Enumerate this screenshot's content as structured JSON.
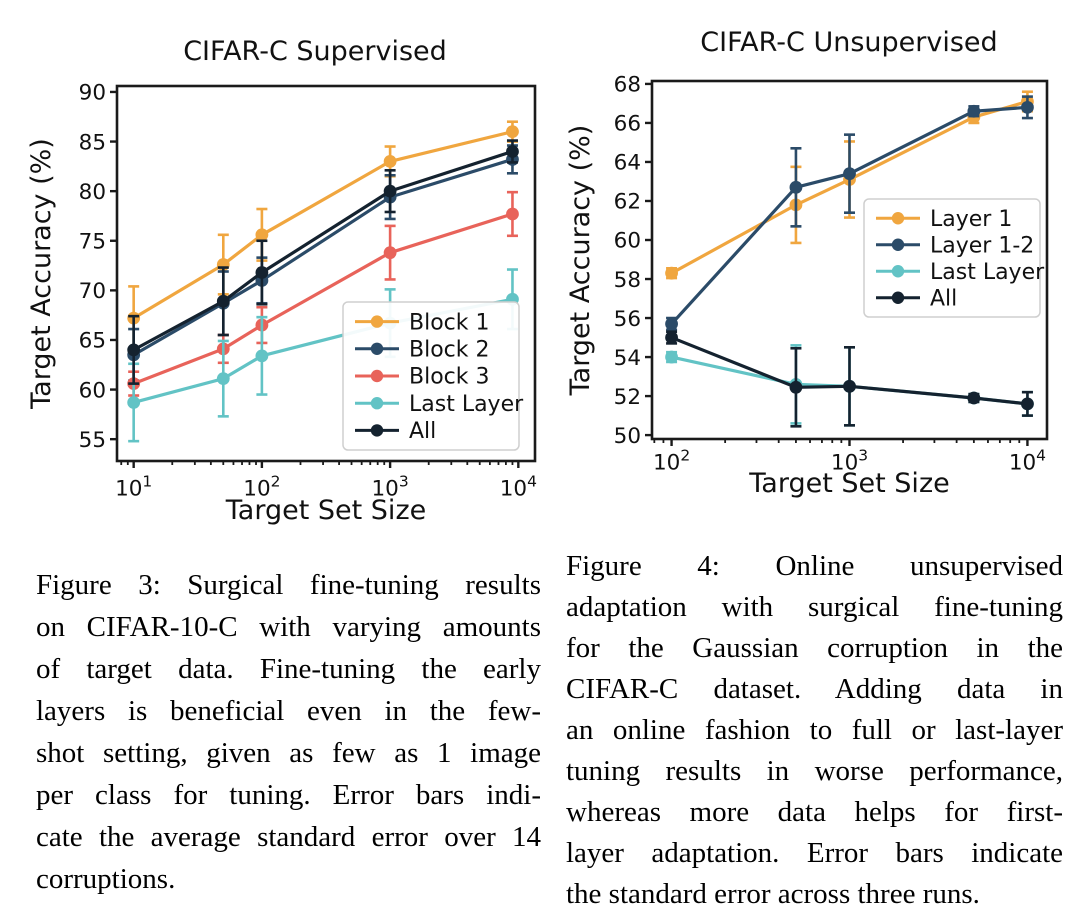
{
  "figures": {
    "figure3": {
      "caption_lines": [
        "Figure 3: Surgical fine-tuning results",
        "on CIFAR-10-C with varying amounts",
        "of target data.  Fine-tuning the early",
        "layers is beneficial even in the few-",
        "shot setting, given as few as 1 image",
        "per class for tuning.  Error bars indi-",
        "cate the average standard error over 14",
        "corruptions."
      ]
    },
    "figure4": {
      "caption_lines": [
        "Figure 4:  Online unsupervised",
        "adaptation with surgical fine-tuning",
        "for the Gaussian corruption in the",
        "CIFAR-C dataset.  Adding data in",
        "an online fashion to full or last-layer",
        "tuning results in worse performance,",
        "whereas more data helps for first-",
        "layer adaptation. Error bars indicate",
        "the standard error across three runs."
      ]
    }
  },
  "chart_data": [
    {
      "type": "line",
      "title": "CIFAR-C Supervised",
      "xlabel": "Target Set Size",
      "ylabel": "Target Accuracy (%)",
      "x_scale": "log",
      "grid": false,
      "legend_position": "lower right",
      "xlim_log10": [
        0.87,
        4.13
      ],
      "ylim": [
        52.8,
        90.6
      ],
      "xticks": [
        {
          "log10": 1,
          "label": "10^1"
        },
        {
          "log10": 2,
          "label": "10^2"
        },
        {
          "log10": 3,
          "label": "10^3"
        },
        {
          "log10": 4,
          "label": "10^4"
        }
      ],
      "yticks": [
        55,
        60,
        65,
        70,
        75,
        80,
        85,
        90
      ],
      "series": [
        {
          "name": "Block 1",
          "color": "#F0A63F",
          "x": [
            10,
            50,
            100,
            1000,
            9000
          ],
          "y": [
            67.2,
            72.6,
            75.6,
            83.0,
            86.0
          ],
          "yerr": [
            3.2,
            3.0,
            2.6,
            1.5,
            1.0
          ]
        },
        {
          "name": "Block 2",
          "color": "#2B4B68",
          "x": [
            10,
            50,
            100,
            1000,
            9000
          ],
          "y": [
            63.5,
            68.7,
            71.0,
            79.4,
            83.2
          ],
          "yerr": [
            2.6,
            3.2,
            2.3,
            2.2,
            1.4
          ]
        },
        {
          "name": "Block 3",
          "color": "#E8635A",
          "x": [
            10,
            50,
            100,
            1000,
            9000
          ],
          "y": [
            60.6,
            64.1,
            66.5,
            73.8,
            77.7
          ],
          "yerr": [
            1.2,
            1.4,
            1.8,
            2.7,
            2.2
          ]
        },
        {
          "name": "Last Layer",
          "color": "#62C3C5",
          "x": [
            10,
            50,
            100,
            1000,
            9000
          ],
          "y": [
            58.7,
            61.1,
            63.4,
            66.7,
            69.1
          ],
          "yerr": [
            3.9,
            3.8,
            3.9,
            3.4,
            3.0
          ]
        },
        {
          "name": "All",
          "color": "#14222F",
          "x": [
            10,
            50,
            100,
            1000,
            9000
          ],
          "y": [
            64.0,
            68.9,
            71.8,
            80.0,
            84.0
          ],
          "yerr": [
            3.4,
            3.4,
            3.2,
            2.1,
            1.1
          ]
        }
      ]
    },
    {
      "type": "line",
      "title": "CIFAR-C Unsupervised",
      "xlabel": "Target Set Size",
      "ylabel": "Target Accuracy (%)",
      "x_scale": "log",
      "grid": false,
      "legend_position": "center right",
      "xlim_log10": [
        1.89,
        4.11
      ],
      "ylim": [
        49.8,
        68.15
      ],
      "xticks": [
        {
          "log10": 2,
          "label": "10^2"
        },
        {
          "log10": 3,
          "label": "10^3"
        },
        {
          "log10": 4,
          "label": "10^4"
        }
      ],
      "yticks": [
        50,
        52,
        54,
        56,
        58,
        60,
        62,
        64,
        66,
        68
      ],
      "series": [
        {
          "name": "Layer 1",
          "color": "#F0A63F",
          "x": [
            100,
            500,
            1000,
            5000,
            10000
          ],
          "y": [
            58.3,
            61.8,
            63.1,
            66.3,
            67.1
          ],
          "yerr": [
            0.25,
            1.95,
            1.95,
            0.3,
            0.5
          ]
        },
        {
          "name": "Layer 1-2",
          "color": "#2B4B68",
          "x": [
            100,
            500,
            1000,
            5000,
            10000
          ],
          "y": [
            55.7,
            62.7,
            63.4,
            66.6,
            66.8
          ],
          "yerr": [
            0.3,
            2.0,
            2.0,
            0.25,
            0.55
          ]
        },
        {
          "name": "Last Layer",
          "color": "#62C3C5",
          "x": [
            100,
            500,
            1000,
            5000,
            10000
          ],
          "y": [
            54.0,
            52.6,
            52.5,
            51.9,
            51.6
          ],
          "yerr": [
            0.25,
            2.0,
            2.0,
            0.2,
            0.6
          ]
        },
        {
          "name": "All",
          "color": "#14222F",
          "x": [
            100,
            500,
            1000,
            5000,
            10000
          ],
          "y": [
            55.0,
            52.45,
            52.5,
            51.9,
            51.6
          ],
          "yerr": [
            0.3,
            2.0,
            2.0,
            0.2,
            0.6
          ]
        }
      ]
    }
  ]
}
